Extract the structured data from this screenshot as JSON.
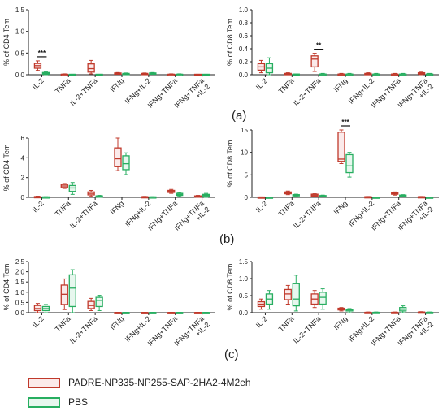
{
  "legend": [
    {
      "name": "PADRE-NP335-NP255-SAP-2HA2-4M2eh",
      "color": "#c0392b",
      "fill": "#fbeaea"
    },
    {
      "name": "PBS",
      "color": "#27ae60",
      "fill": "#e7f7ee"
    }
  ],
  "panel_labels": [
    "(a)",
    "(b)",
    "(c)"
  ],
  "chart_data": [
    {
      "type": "box",
      "ylabel": "% of CD4 Tem",
      "yticks": [
        "0.0",
        "0.5",
        "1.0",
        "1.5"
      ],
      "ylim": [
        0,
        1.5
      ],
      "categories": [
        "IL-2",
        "TNFa",
        "IL-2+TNFa",
        "IFNg",
        "IFNg+IL-2",
        "IFNg+TNFa",
        "IFNg+TNFa\n+IL-2"
      ],
      "series": [
        {
          "name": "PADRE-NP335-NP255-SAP-2HA2-4M2eh",
          "boxes": [
            [
              0.1,
              0.15,
              0.21,
              0.26,
              0.32
            ],
            [
              0.0,
              0.0,
              0.01,
              0.01,
              0.02
            ],
            [
              0.02,
              0.06,
              0.14,
              0.25,
              0.33
            ],
            [
              0.01,
              0.02,
              0.03,
              0.04,
              0.05
            ],
            [
              0.0,
              0.01,
              0.02,
              0.03,
              0.04
            ],
            [
              0.0,
              0.0,
              0.01,
              0.01,
              0.02
            ],
            [
              0.0,
              0.0,
              0.0,
              0.01,
              0.01
            ]
          ]
        },
        {
          "name": "PBS",
          "boxes": [
            [
              0.0,
              0.01,
              0.03,
              0.05,
              0.07
            ],
            [
              0.0,
              0.0,
              0.0,
              0.01,
              0.01
            ],
            [
              0.0,
              0.0,
              0.0,
              0.01,
              0.01
            ],
            [
              0.0,
              0.01,
              0.02,
              0.03,
              0.04
            ],
            [
              0.01,
              0.02,
              0.03,
              0.04,
              0.05
            ],
            [
              0.0,
              0.0,
              0.01,
              0.01,
              0.02
            ],
            [
              0.0,
              0.0,
              0.0,
              0.01,
              0.01
            ]
          ]
        }
      ],
      "significance": [
        {
          "category": 0,
          "label": "***"
        }
      ]
    },
    {
      "type": "box",
      "ylabel": "% of CD8 Tem",
      "yticks": [
        "0.0",
        "0.2",
        "0.4",
        "0.6",
        "0.8",
        "1.0"
      ],
      "ylim": [
        0,
        1.0
      ],
      "categories": [
        "IL-2",
        "TNFa",
        "IL-2+TNFa",
        "IFNg",
        "IFNg+IL-2",
        "IFNg+TNFa",
        "IFNg+TNFa\n+IL-2"
      ],
      "series": [
        {
          "name": "PADRE-NP335-NP255-SAP-2HA2-4M2eh",
          "boxes": [
            [
              0.03,
              0.07,
              0.12,
              0.17,
              0.22
            ],
            [
              0.0,
              0.0,
              0.01,
              0.02,
              0.03
            ],
            [
              0.05,
              0.12,
              0.24,
              0.29,
              0.33
            ],
            [
              0.0,
              0.0,
              0.01,
              0.01,
              0.02
            ],
            [
              0.0,
              0.0,
              0.01,
              0.02,
              0.03
            ],
            [
              0.0,
              0.0,
              0.01,
              0.01,
              0.02
            ],
            [
              0.0,
              0.01,
              0.02,
              0.03,
              0.04
            ]
          ]
        },
        {
          "name": "PBS",
          "boxes": [
            [
              0.0,
              0.03,
              0.1,
              0.17,
              0.26
            ],
            [
              0.0,
              0.0,
              0.0,
              0.01,
              0.01
            ],
            [
              0.0,
              0.0,
              0.01,
              0.01,
              0.02
            ],
            [
              0.0,
              0.0,
              0.01,
              0.01,
              0.02
            ],
            [
              0.0,
              0.0,
              0.01,
              0.01,
              0.02
            ],
            [
              0.0,
              0.0,
              0.01,
              0.01,
              0.02
            ],
            [
              0.0,
              0.0,
              0.01,
              0.01,
              0.02
            ]
          ]
        }
      ],
      "significance": [
        {
          "category": 2,
          "label": "**"
        }
      ]
    },
    {
      "type": "box",
      "ylabel": "% of CD4 Tem",
      "yticks": [
        "0",
        "2",
        "4",
        "6"
      ],
      "ylim": [
        0,
        6
      ],
      "categories": [
        "IL-2",
        "TNFa",
        "IL-2+TNFa",
        "IFNg",
        "IFNg+IL-2",
        "IFNg+TNFa",
        "IFNg+TNFa\n+IL-2"
      ],
      "series": [
        {
          "name": "PADRE-NP335-NP255-SAP-2HA2-4M2eh",
          "boxes": [
            [
              0.0,
              0.02,
              0.05,
              0.08,
              0.12
            ],
            [
              0.9,
              1.0,
              1.15,
              1.3,
              1.4
            ],
            [
              0.1,
              0.25,
              0.4,
              0.55,
              0.7
            ],
            [
              2.7,
              3.1,
              3.9,
              5.0,
              6.0
            ],
            [
              0.0,
              0.02,
              0.05,
              0.07,
              0.1
            ],
            [
              0.4,
              0.5,
              0.6,
              0.7,
              0.8
            ],
            [
              0.0,
              0.05,
              0.1,
              0.15,
              0.2
            ]
          ]
        },
        {
          "name": "PBS",
          "boxes": [
            [
              0.0,
              0.01,
              0.03,
              0.05,
              0.06
            ],
            [
              0.3,
              0.6,
              0.95,
              1.2,
              1.5
            ],
            [
              0.0,
              0.05,
              0.1,
              0.15,
              0.2
            ],
            [
              2.3,
              2.8,
              3.4,
              4.2,
              4.5
            ],
            [
              0.0,
              0.01,
              0.03,
              0.05,
              0.06
            ],
            [
              0.1,
              0.2,
              0.3,
              0.4,
              0.5
            ],
            [
              0.0,
              0.1,
              0.2,
              0.3,
              0.4
            ]
          ]
        }
      ]
    },
    {
      "type": "box",
      "ylabel": "% of CD8 Tem",
      "yticks": [
        "0",
        "5",
        "10",
        "15"
      ],
      "ylim": [
        0,
        15
      ],
      "categories": [
        "IL-2",
        "TNFa",
        "IL-2+TNFa",
        "IFNg",
        "IFNg+IL-2",
        "IFNg+TNFa",
        "IFNg+TNFa\n+IL-2"
      ],
      "series": [
        {
          "name": "PADRE-NP335-NP255-SAP-2HA2-4M2eh",
          "boxes": [
            [
              0.0,
              0.03,
              0.05,
              0.08,
              0.1
            ],
            [
              0.6,
              0.8,
              1.0,
              1.2,
              1.4
            ],
            [
              0.2,
              0.3,
              0.5,
              0.7,
              0.8
            ],
            [
              7.5,
              8.0,
              8.5,
              14.5,
              15.0
            ],
            [
              0.0,
              0.05,
              0.1,
              0.15,
              0.2
            ],
            [
              0.5,
              0.7,
              0.9,
              1.1,
              1.2
            ],
            [
              0.0,
              0.05,
              0.1,
              0.15,
              0.2
            ]
          ]
        },
        {
          "name": "PBS",
          "boxes": [
            [
              0.0,
              0.02,
              0.04,
              0.06,
              0.08
            ],
            [
              0.3,
              0.4,
              0.5,
              0.6,
              0.7
            ],
            [
              0.1,
              0.2,
              0.3,
              0.4,
              0.5
            ],
            [
              4.5,
              5.5,
              7.0,
              9.5,
              10.0
            ],
            [
              0.0,
              0.02,
              0.04,
              0.06,
              0.08
            ],
            [
              0.2,
              0.3,
              0.4,
              0.5,
              0.6
            ],
            [
              0.0,
              0.02,
              0.04,
              0.06,
              0.08
            ]
          ]
        }
      ],
      "significance": [
        {
          "category": 3,
          "label": "***"
        }
      ]
    },
    {
      "type": "box",
      "ylabel": "% of CD4 Tem",
      "yticks": [
        "0.0",
        "0.5",
        "1.0",
        "1.5",
        "2.0",
        "2.5"
      ],
      "ylim": [
        0,
        2.5
      ],
      "categories": [
        "IL-2",
        "TNFa",
        "IL-2+TNFa",
        "IFNg",
        "IFNg+IL-2",
        "IFNg+TNFa",
        "IFNg+TNFa\n+IL-2"
      ],
      "series": [
        {
          "name": "PADRE-NP335-NP255-SAP-2HA2-4M2eh",
          "boxes": [
            [
              0.0,
              0.1,
              0.2,
              0.35,
              0.45
            ],
            [
              0.15,
              0.4,
              0.9,
              1.35,
              1.65
            ],
            [
              0.1,
              0.2,
              0.35,
              0.55,
              0.7
            ],
            [
              0.0,
              0.0,
              0.01,
              0.01,
              0.02
            ],
            [
              0.0,
              0.0,
              0.01,
              0.01,
              0.02
            ],
            [
              0.0,
              0.0,
              0.01,
              0.01,
              0.02
            ],
            [
              0.0,
              0.0,
              0.01,
              0.01,
              0.02
            ]
          ]
        },
        {
          "name": "PBS",
          "boxes": [
            [
              0.0,
              0.1,
              0.2,
              0.3,
              0.4
            ],
            [
              0.0,
              0.3,
              1.2,
              1.85,
              2.1
            ],
            [
              0.1,
              0.3,
              0.6,
              0.75,
              0.85
            ],
            [
              0.0,
              0.0,
              0.01,
              0.01,
              0.02
            ],
            [
              0.0,
              0.0,
              0.01,
              0.01,
              0.02
            ],
            [
              0.0,
              0.0,
              0.01,
              0.01,
              0.02
            ],
            [
              0.0,
              0.0,
              0.01,
              0.01,
              0.02
            ]
          ]
        }
      ]
    },
    {
      "type": "box",
      "ylabel": "% of CD8 Tem",
      "yticks": [
        "0.0",
        "0.5",
        "1.0",
        "1.5"
      ],
      "ylim": [
        0,
        1.5
      ],
      "categories": [
        "IL-2",
        "TNFa",
        "IL-2+TNFa",
        "IFNg",
        "IFNg+IL-2",
        "IFNg+TNFa",
        "IFNg+TNFa\n+IL-2"
      ],
      "series": [
        {
          "name": "PADRE-NP335-NP255-SAP-2HA2-4M2eh",
          "boxes": [
            [
              0.1,
              0.18,
              0.25,
              0.32,
              0.4
            ],
            [
              0.25,
              0.38,
              0.55,
              0.68,
              0.8
            ],
            [
              0.15,
              0.25,
              0.4,
              0.55,
              0.65
            ],
            [
              0.05,
              0.08,
              0.1,
              0.13,
              0.15
            ],
            [
              0.0,
              0.0,
              0.01,
              0.01,
              0.02
            ],
            [
              0.0,
              0.0,
              0.01,
              0.01,
              0.02
            ],
            [
              0.0,
              0.0,
              0.01,
              0.02,
              0.03
            ]
          ]
        },
        {
          "name": "PBS",
          "boxes": [
            [
              0.1,
              0.25,
              0.4,
              0.55,
              0.65
            ],
            [
              0.05,
              0.2,
              0.4,
              0.85,
              1.1
            ],
            [
              0.1,
              0.25,
              0.45,
              0.6,
              0.7
            ],
            [
              0.0,
              0.05,
              0.08,
              0.1,
              0.12
            ],
            [
              0.0,
              0.0,
              0.01,
              0.01,
              0.02
            ],
            [
              0.0,
              0.05,
              0.1,
              0.15,
              0.2
            ],
            [
              0.0,
              0.0,
              0.01,
              0.01,
              0.02
            ]
          ]
        }
      ]
    }
  ]
}
